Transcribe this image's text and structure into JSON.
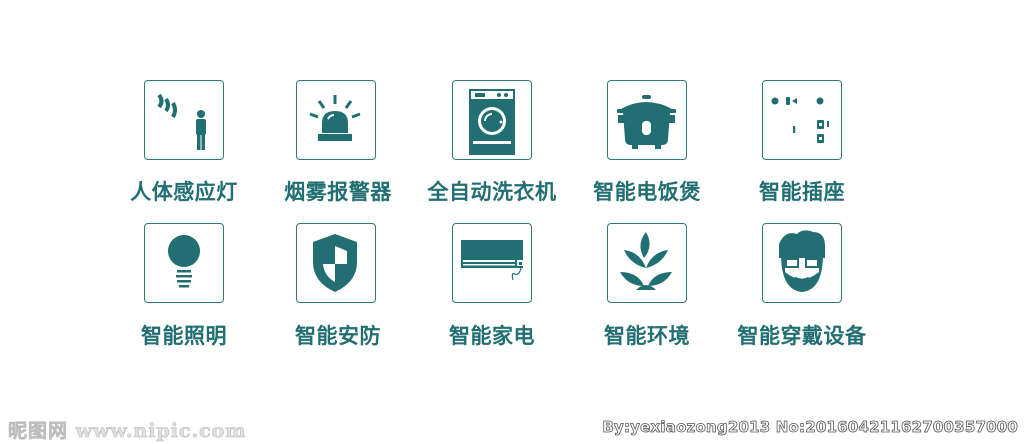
{
  "theme": {
    "accent": "#216f72",
    "tile_border": "#2e7a7d"
  },
  "items": [
    {
      "label": "人体感应灯",
      "icon": "motion-sensor-person-icon"
    },
    {
      "label": "烟雾报警器",
      "icon": "smoke-alarm-siren-icon"
    },
    {
      "label": "全自动洗衣机",
      "icon": "washing-machine-icon"
    },
    {
      "label": "智能电饭煲",
      "icon": "rice-cooker-icon"
    },
    {
      "label": "智能插座",
      "icon": "wall-socket-icon"
    },
    {
      "label": "智能照明",
      "icon": "light-bulb-icon"
    },
    {
      "label": "智能安防",
      "icon": "security-shield-icon"
    },
    {
      "label": "智能家电",
      "icon": "air-conditioner-icon"
    },
    {
      "label": "智能环境",
      "icon": "plant-leaves-icon"
    },
    {
      "label": "智能穿戴设备",
      "icon": "smart-glasses-face-icon"
    }
  ],
  "watermark": {
    "left": "昵图网 www.nipic.com",
    "right": "By:yexiaozong2013 No:20160421162700357000"
  }
}
